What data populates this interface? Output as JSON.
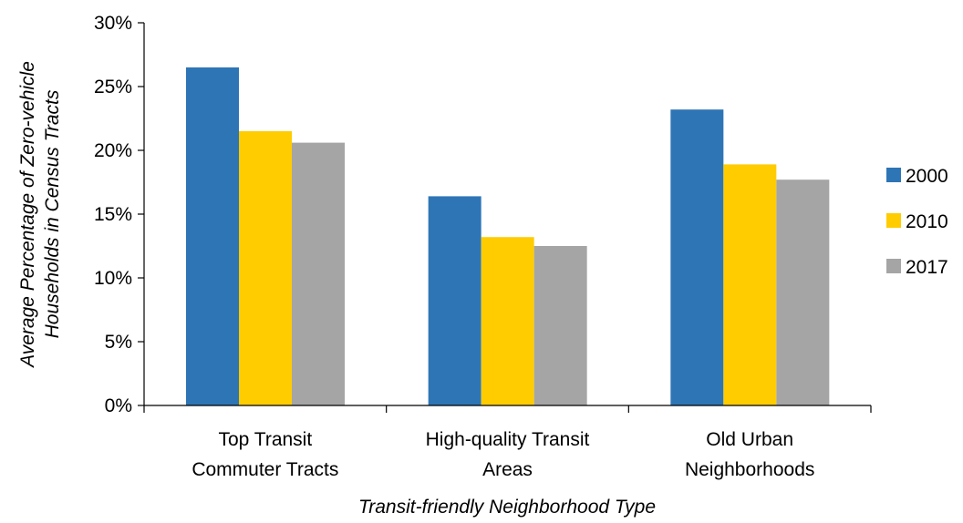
{
  "chart_data": {
    "type": "bar",
    "categories": [
      [
        "Top Transit",
        "Commuter Tracts"
      ],
      [
        "High-quality Transit",
        "Areas"
      ],
      [
        "Old Urban",
        "Neighborhoods"
      ]
    ],
    "series": [
      {
        "name": "2000",
        "color": "#2E75B6",
        "values": [
          0.265,
          0.164,
          0.232
        ]
      },
      {
        "name": "2010",
        "color": "#FFCC00",
        "values": [
          0.215,
          0.132,
          0.189
        ]
      },
      {
        "name": "2017",
        "color": "#A5A5A5",
        "values": [
          0.206,
          0.125,
          0.177
        ]
      }
    ],
    "ylim": [
      0,
      0.3
    ],
    "y_ticks": [
      0,
      0.05,
      0.1,
      0.15,
      0.2,
      0.25,
      0.3
    ],
    "y_tick_labels": [
      "0%",
      "5%",
      "10%",
      "15%",
      "20%",
      "25%",
      "30%"
    ],
    "xlabel": "Transit-friendly Neighborhood Type",
    "ylabel": [
      "Average Percentage of Zero-vehicle",
      "Households in Census Tracts"
    ],
    "title": "",
    "grid": false,
    "legend_position": "right"
  }
}
